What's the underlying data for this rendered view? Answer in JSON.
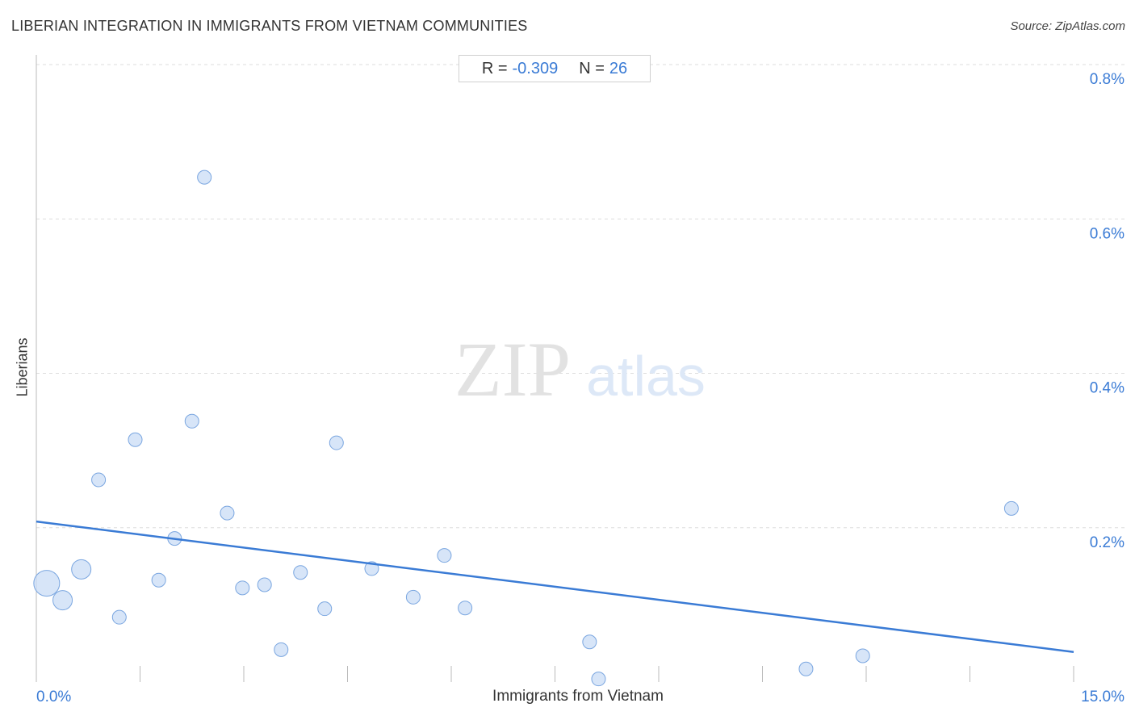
{
  "header": {
    "title": "LIBERIAN INTEGRATION IN IMMIGRANTS FROM VIETNAM COMMUNITIES",
    "source": "Source: ZipAtlas.com"
  },
  "stats": {
    "r_label": "R =",
    "r_value": "-0.309",
    "n_label": "N =",
    "n_value": "26"
  },
  "watermark": {
    "zip": "ZIP",
    "atlas": "atlas"
  },
  "colors": {
    "accent": "#3a7bd5",
    "point_fill": "#c9dcf5",
    "point_stroke": "#7aa6e0",
    "grid": "#dddddd"
  },
  "chart_data": {
    "type": "scatter",
    "xlabel": "Immigrants from Vietnam",
    "ylabel": "Liberians",
    "xlim": [
      0,
      15
    ],
    "ylim": [
      0,
      0.8
    ],
    "x_tick_labels": [
      {
        "value": 0,
        "label": "0.0%"
      },
      {
        "value": 15,
        "label": "15.0%"
      }
    ],
    "y_tick_labels": [
      {
        "value": 0.8,
        "label": "0.8%"
      },
      {
        "value": 0.6,
        "label": "0.6%"
      },
      {
        "value": 0.4,
        "label": "0.4%"
      },
      {
        "value": 0.2,
        "label": "0.2%"
      }
    ],
    "grid": true,
    "trendline": {
      "x": [
        0,
        15
      ],
      "y": [
        0.208,
        0.039
      ]
    },
    "points": [
      {
        "x": 0.15,
        "y": 0.128,
        "size": "large"
      },
      {
        "x": 0.38,
        "y": 0.106,
        "size": "medium"
      },
      {
        "x": 0.65,
        "y": 0.146,
        "size": "medium"
      },
      {
        "x": 0.9,
        "y": 0.262,
        "size": "small"
      },
      {
        "x": 1.2,
        "y": 0.084,
        "size": "small"
      },
      {
        "x": 1.43,
        "y": 0.314,
        "size": "small"
      },
      {
        "x": 1.77,
        "y": 0.132,
        "size": "small"
      },
      {
        "x": 2.0,
        "y": 0.186,
        "size": "small"
      },
      {
        "x": 2.25,
        "y": 0.338,
        "size": "small"
      },
      {
        "x": 2.43,
        "y": 0.654,
        "size": "small"
      },
      {
        "x": 2.76,
        "y": 0.219,
        "size": "small"
      },
      {
        "x": 2.98,
        "y": 0.122,
        "size": "small"
      },
      {
        "x": 3.3,
        "y": 0.126,
        "size": "small"
      },
      {
        "x": 3.54,
        "y": 0.042,
        "size": "small"
      },
      {
        "x": 3.82,
        "y": 0.142,
        "size": "small"
      },
      {
        "x": 4.17,
        "y": 0.095,
        "size": "small"
      },
      {
        "x": 4.34,
        "y": 0.31,
        "size": "small"
      },
      {
        "x": 4.85,
        "y": 0.147,
        "size": "small"
      },
      {
        "x": 5.45,
        "y": 0.11,
        "size": "small"
      },
      {
        "x": 5.9,
        "y": 0.164,
        "size": "small"
      },
      {
        "x": 6.2,
        "y": 0.096,
        "size": "small"
      },
      {
        "x": 8.0,
        "y": 0.052,
        "size": "small"
      },
      {
        "x": 8.13,
        "y": 0.004,
        "size": "small"
      },
      {
        "x": 11.13,
        "y": 0.017,
        "size": "small"
      },
      {
        "x": 11.95,
        "y": 0.034,
        "size": "small"
      },
      {
        "x": 14.1,
        "y": 0.225,
        "size": "small"
      }
    ]
  }
}
